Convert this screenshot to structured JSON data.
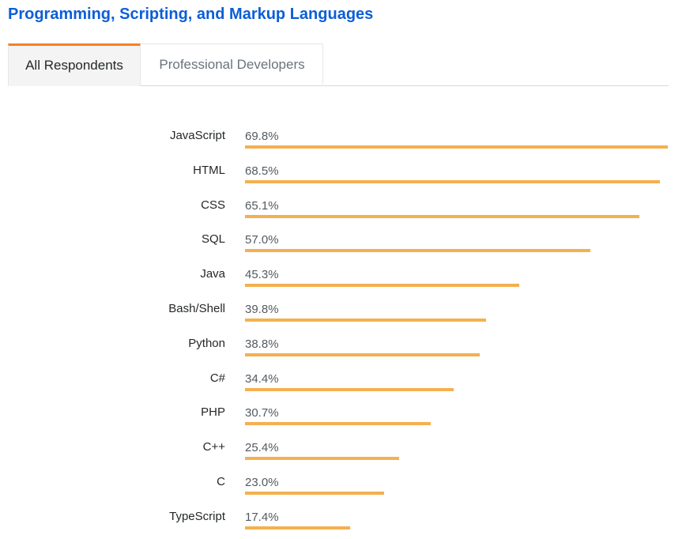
{
  "header": {
    "title": "Programming, Scripting, and Markup Languages"
  },
  "tabs": [
    {
      "label": "All Respondents",
      "active": true
    },
    {
      "label": "Professional Developers",
      "active": false
    }
  ],
  "colors": {
    "title": "#0c5ed6",
    "active_tab_border": "#f48024",
    "bar": "#f4b04f"
  },
  "chart_data": {
    "type": "bar",
    "orientation": "horizontal",
    "title": "",
    "xlabel": "",
    "ylabel": "",
    "xlim": [
      0,
      69.8
    ],
    "grid": false,
    "categories": [
      "JavaScript",
      "HTML",
      "CSS",
      "SQL",
      "Java",
      "Bash/Shell",
      "Python",
      "C#",
      "PHP",
      "C++",
      "C",
      "TypeScript"
    ],
    "values": [
      69.8,
      68.5,
      65.1,
      57.0,
      45.3,
      39.8,
      38.8,
      34.4,
      30.7,
      25.4,
      23.0,
      17.4
    ],
    "value_labels": [
      "69.8%",
      "68.5%",
      "65.1%",
      "57.0%",
      "45.3%",
      "39.8%",
      "38.8%",
      "34.4%",
      "30.7%",
      "25.4%",
      "23.0%",
      "17.4%"
    ]
  }
}
